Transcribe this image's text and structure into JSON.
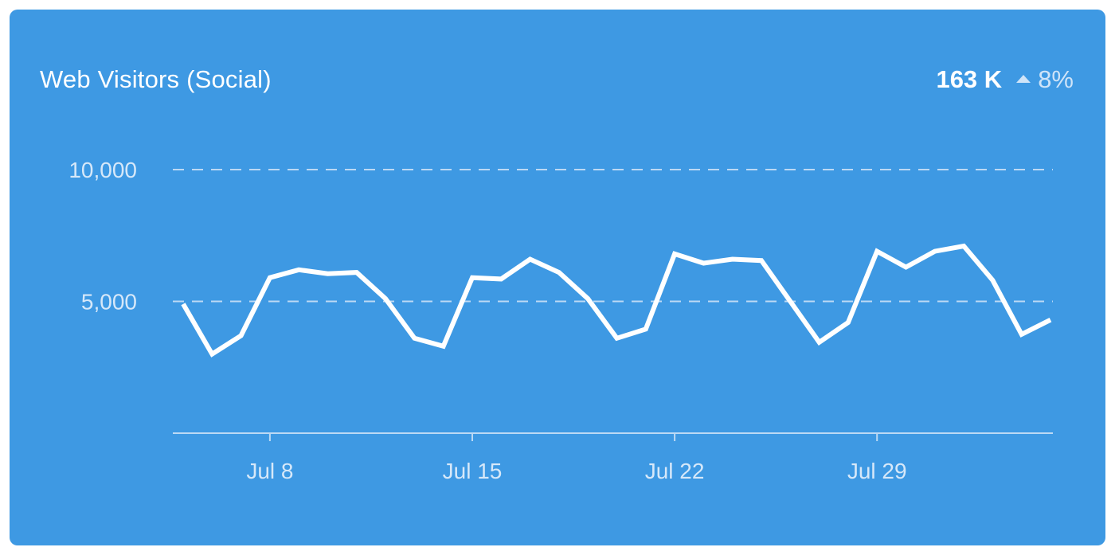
{
  "card": {
    "title": "Web Visitors (Social)",
    "kpi_value": "163 K",
    "kpi_change": "8%",
    "kpi_direction": "up"
  },
  "colors": {
    "background": "#3e99e3",
    "line": "#ffffff",
    "grid": "#bcd9f4",
    "axis_text": "#d6e8f9"
  },
  "chart_data": {
    "type": "line",
    "title": "Web Visitors (Social)",
    "xlabel": "",
    "ylabel": "",
    "ylim": [
      0,
      10000
    ],
    "y_ticks": [
      {
        "value": 5000,
        "label": "5,000"
      },
      {
        "value": 10000,
        "label": "10,000"
      }
    ],
    "x_ticks": [
      {
        "x": "2024-07-08",
        "label": "Jul 8"
      },
      {
        "x": "2024-07-15",
        "label": "Jul 15"
      },
      {
        "x": "2024-07-22",
        "label": "Jul 22"
      },
      {
        "x": "2024-07-29",
        "label": "Jul 29"
      }
    ],
    "grid": "dashed horizontal",
    "series": [
      {
        "x": [
          "2024-07-05",
          "2024-07-06",
          "2024-07-07",
          "2024-07-08",
          "2024-07-09",
          "2024-07-10",
          "2024-07-11",
          "2024-07-12",
          "2024-07-13",
          "2024-07-14",
          "2024-07-15",
          "2024-07-16",
          "2024-07-17",
          "2024-07-18",
          "2024-07-19",
          "2024-07-20",
          "2024-07-21",
          "2024-07-22",
          "2024-07-23",
          "2024-07-24",
          "2024-07-25",
          "2024-07-26",
          "2024-07-27",
          "2024-07-28",
          "2024-07-29",
          "2024-07-30",
          "2024-07-31",
          "2024-08-01",
          "2024-08-02",
          "2024-08-03",
          "2024-08-04"
        ],
        "values": [
          4900,
          3000,
          3700,
          5900,
          6200,
          6050,
          6100,
          5100,
          3600,
          3300,
          5900,
          5850,
          6600,
          6100,
          5100,
          3600,
          3950,
          6800,
          6450,
          6600,
          6550,
          5000,
          3450,
          4200,
          6900,
          6300,
          6900,
          7100,
          5800,
          3750,
          4300
        ]
      }
    ]
  }
}
